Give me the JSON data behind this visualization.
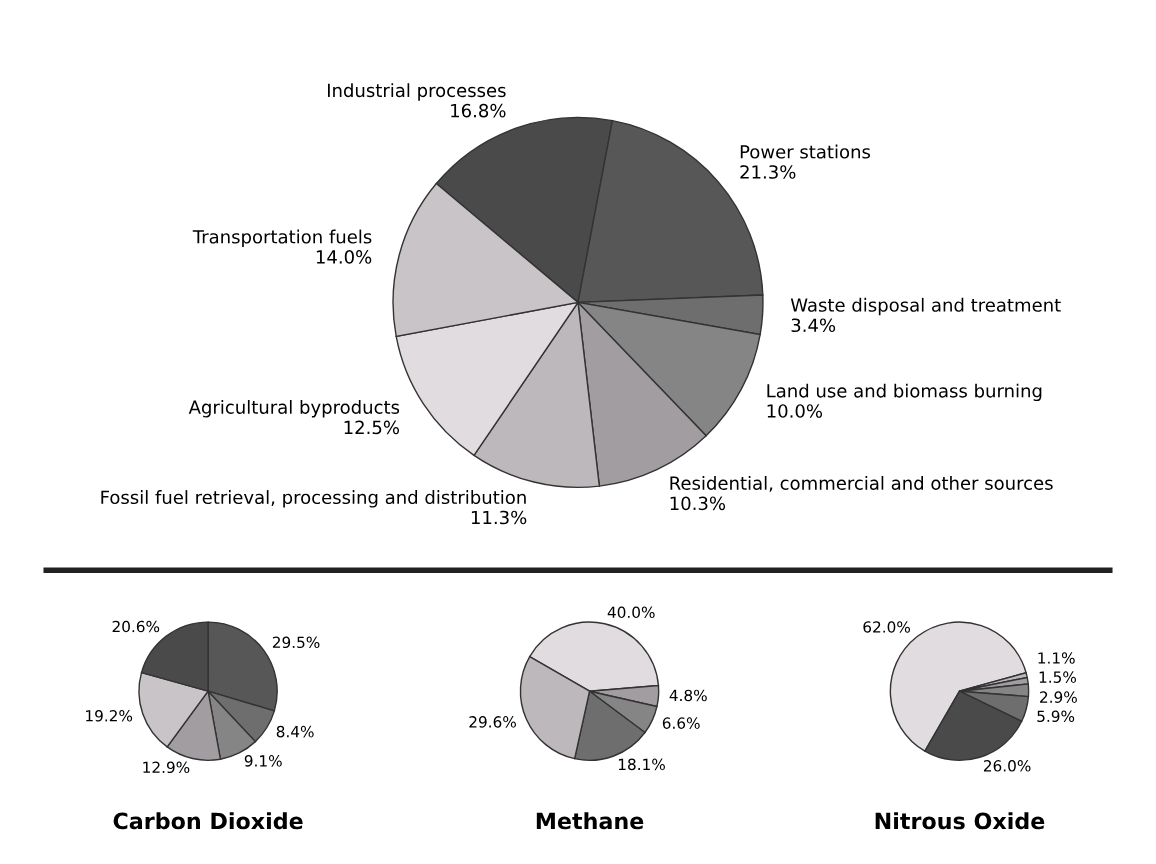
{
  "chart_data": [
    {
      "type": "pie",
      "categories": [
        "Industrial processes",
        "Power stations",
        "Waste disposal and treatment",
        "Land use and biomass burning",
        "Residential, commercial and other sources",
        "Fossil fuel retrieval, processing and distribution",
        "Agricultural byproducts",
        "Transportation fuels"
      ],
      "values": [
        16.8,
        21.3,
        3.4,
        10.0,
        10.3,
        11.3,
        12.5,
        14.0
      ],
      "value_labels": [
        "16.8%",
        "21.3%",
        "3.4%",
        "10.0%",
        "10.3%",
        "11.3%",
        "12.5%",
        "14.0%"
      ],
      "colors": [
        "#4a4a4a",
        "#575757",
        "#6e6e6e",
        "#858585",
        "#a19da1",
        "#bcb8bc",
        "#e0dce0",
        "#c8c4c8"
      ]
    },
    {
      "type": "pie",
      "title": "Carbon Dioxide",
      "categories": [
        null,
        null,
        null,
        null,
        null,
        null
      ],
      "values": [
        29.5,
        8.4,
        9.1,
        12.9,
        19.2,
        20.6
      ],
      "value_labels": [
        "29.5%",
        "8.4%",
        "9.1%",
        "12.9%",
        "19.2%",
        "20.6%"
      ],
      "colors": [
        "#575757",
        "#6e6e6e",
        "#858585",
        "#a19da1",
        "#c8c4c8",
        "#4a4a4a"
      ]
    },
    {
      "type": "pie",
      "title": "Methane",
      "categories": [
        null,
        null,
        null,
        null,
        null
      ],
      "values": [
        40.0,
        4.8,
        6.6,
        18.1,
        29.6
      ],
      "value_labels": [
        "40.0%",
        "4.8%",
        "6.6%",
        "18.1%",
        "29.6%"
      ],
      "colors": [
        "#e0dce0",
        "#a19da1",
        "#858585",
        "#6e6e6e",
        "#bcb8bc"
      ]
    },
    {
      "type": "pie",
      "title": "Nitrous Oxide",
      "categories": [
        null,
        null,
        null,
        null,
        null,
        null
      ],
      "values": [
        62.0,
        1.1,
        1.5,
        2.9,
        5.9,
        26.0
      ],
      "value_labels": [
        "62.0%",
        "1.1%",
        "1.5%",
        "2.9%",
        "5.9%",
        "26.0%"
      ],
      "colors": [
        "#e0dce0",
        "#bcb8bc",
        "#a19da1",
        "#858585",
        "#6e6e6e",
        "#4a4a4a"
      ]
    }
  ]
}
